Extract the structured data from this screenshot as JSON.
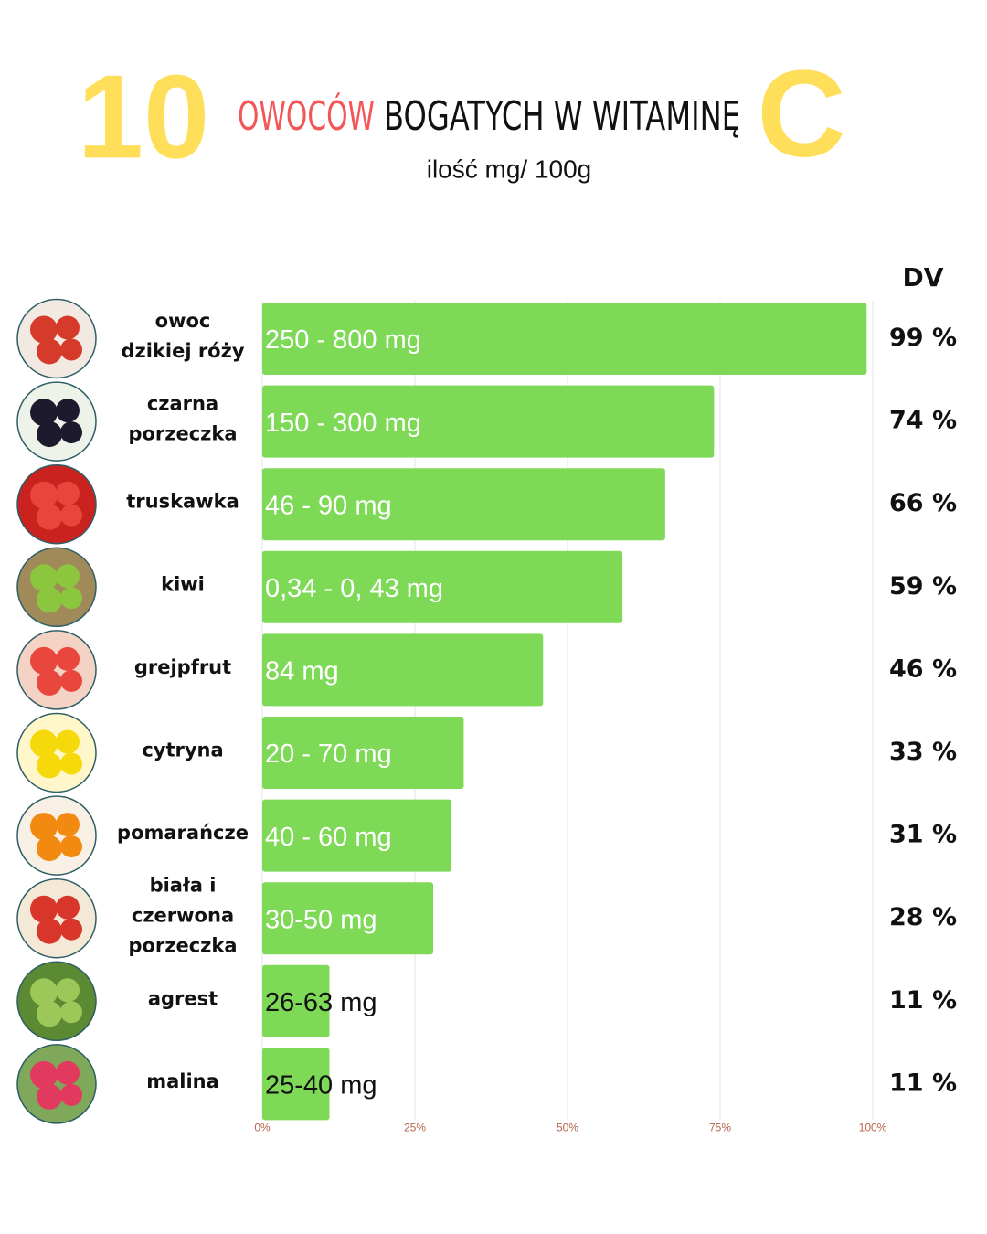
{
  "chart_data": {
    "type": "barh",
    "title_number": "10",
    "title_highlight": "OWOCÓW",
    "title": "BOGATYCH W WITAMINĘ",
    "title_letter": "C",
    "subtitle": "ilość mg/ 100g",
    "value_header": "DV",
    "categories": [
      "owoc\ndzikiej róży",
      "czarna\nporzeczka",
      "truskawka",
      "kiwi",
      "grejpfrut",
      "cytryna",
      "pomarańcze",
      "biała i\nczerwona\nporzeczka",
      "agrest",
      "malina"
    ],
    "amounts": [
      "250 - 800 mg",
      "150 - 300 mg",
      "46 - 90 mg",
      "0,34 - 0, 43 mg",
      "84 mg",
      "20 - 70 mg",
      "40 - 60 mg",
      "30-50 mg",
      "26-63 mg",
      "25-40 mg"
    ],
    "values": [
      99,
      74,
      66,
      59,
      46,
      33,
      31,
      28,
      11,
      11
    ],
    "value_labels": [
      "99 %",
      "74 %",
      "66 %",
      "59 %",
      "46 %",
      "33 %",
      "31 %",
      "28 %",
      "11 %",
      "11 %"
    ],
    "color": "#7ed957",
    "xlim": [
      0,
      100
    ],
    "xticks": [
      {
        "value": 0,
        "label": "0%"
      },
      {
        "value": 25,
        "label": "25%"
      },
      {
        "value": 50,
        "label": "50%"
      },
      {
        "value": 75,
        "label": "75%"
      },
      {
        "value": 100,
        "label": "100%"
      }
    ],
    "grid": true
  }
}
